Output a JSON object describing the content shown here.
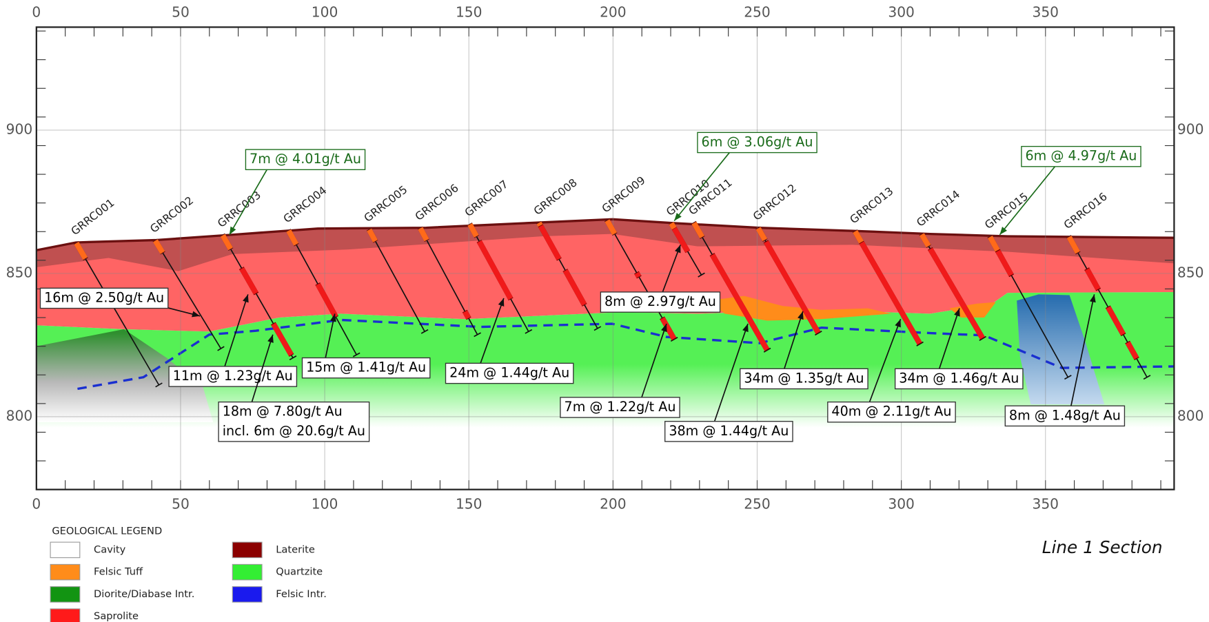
{
  "x_axis": {
    "ticks": [
      0,
      50,
      100,
      150,
      200,
      250,
      300,
      350
    ]
  },
  "y_axis": {
    "ticks": [
      800,
      850,
      900
    ]
  },
  "holes": [
    "GRRC001",
    "GRRC002",
    "GRRC003",
    "GRRC004",
    "GRRC005",
    "GRRC006",
    "GRRC007",
    "GRRC008",
    "GRRC009",
    "GRRC010",
    "GRRC011",
    "GRRC012",
    "GRRC013",
    "GRRC014",
    "GRRC015",
    "GRRC016"
  ],
  "intercepts": [
    {
      "lines": [
        "16m @ 2.50g/t Au"
      ],
      "color": "#000000"
    },
    {
      "lines": [
        "11m @ 1.23g/t Au"
      ],
      "color": "#000000"
    },
    {
      "lines": [
        "18m @ 7.80g/t Au",
        "incl. 6m @ 20.6g/t Au"
      ],
      "color": "#000000"
    },
    {
      "lines": [
        "15m @ 1.41g/t Au"
      ],
      "color": "#000000"
    },
    {
      "lines": [
        "24m @ 1.44g/t Au"
      ],
      "color": "#000000"
    },
    {
      "lines": [
        "8m @ 2.97g/t Au"
      ],
      "color": "#000000"
    },
    {
      "lines": [
        "7m @ 1.22g/t Au"
      ],
      "color": "#000000"
    },
    {
      "lines": [
        "38m @ 1.44g/t Au"
      ],
      "color": "#000000"
    },
    {
      "lines": [
        "34m @ 1.35g/t Au"
      ],
      "color": "#000000"
    },
    {
      "lines": [
        "40m @ 2.11g/t Au"
      ],
      "color": "#000000"
    },
    {
      "lines": [
        "34m @ 1.46g/t Au"
      ],
      "color": "#000000"
    },
    {
      "lines": [
        "8m @ 1.48g/t Au"
      ],
      "color": "#000000"
    },
    {
      "lines": [
        "7m @ 4.01g/t Au"
      ],
      "color": "#1a6b1a"
    },
    {
      "lines": [
        "6m @ 3.06g/t Au"
      ],
      "color": "#1a6b1a"
    },
    {
      "lines": [
        "6m @ 4.97g/t Au"
      ],
      "color": "#1a6b1a"
    }
  ],
  "legend": {
    "title": "GEOLOGICAL LEGEND",
    "items": [
      {
        "label": "Cavity",
        "color": "#ffffff"
      },
      {
        "label": "Felsic Tuff",
        "color": "#ff8c1a"
      },
      {
        "label": "Diorite/Diabase Intr.",
        "color": "#129412"
      },
      {
        "label": "Saprolite",
        "color": "#ff1a1a"
      },
      {
        "label": "Laterite",
        "color": "#8b0000"
      },
      {
        "label": "Quartzite",
        "color": "#33ee33"
      },
      {
        "label": "Felsic Intr.",
        "color": "#1a1aee"
      }
    ]
  },
  "section_title": "Line 1 Section"
}
